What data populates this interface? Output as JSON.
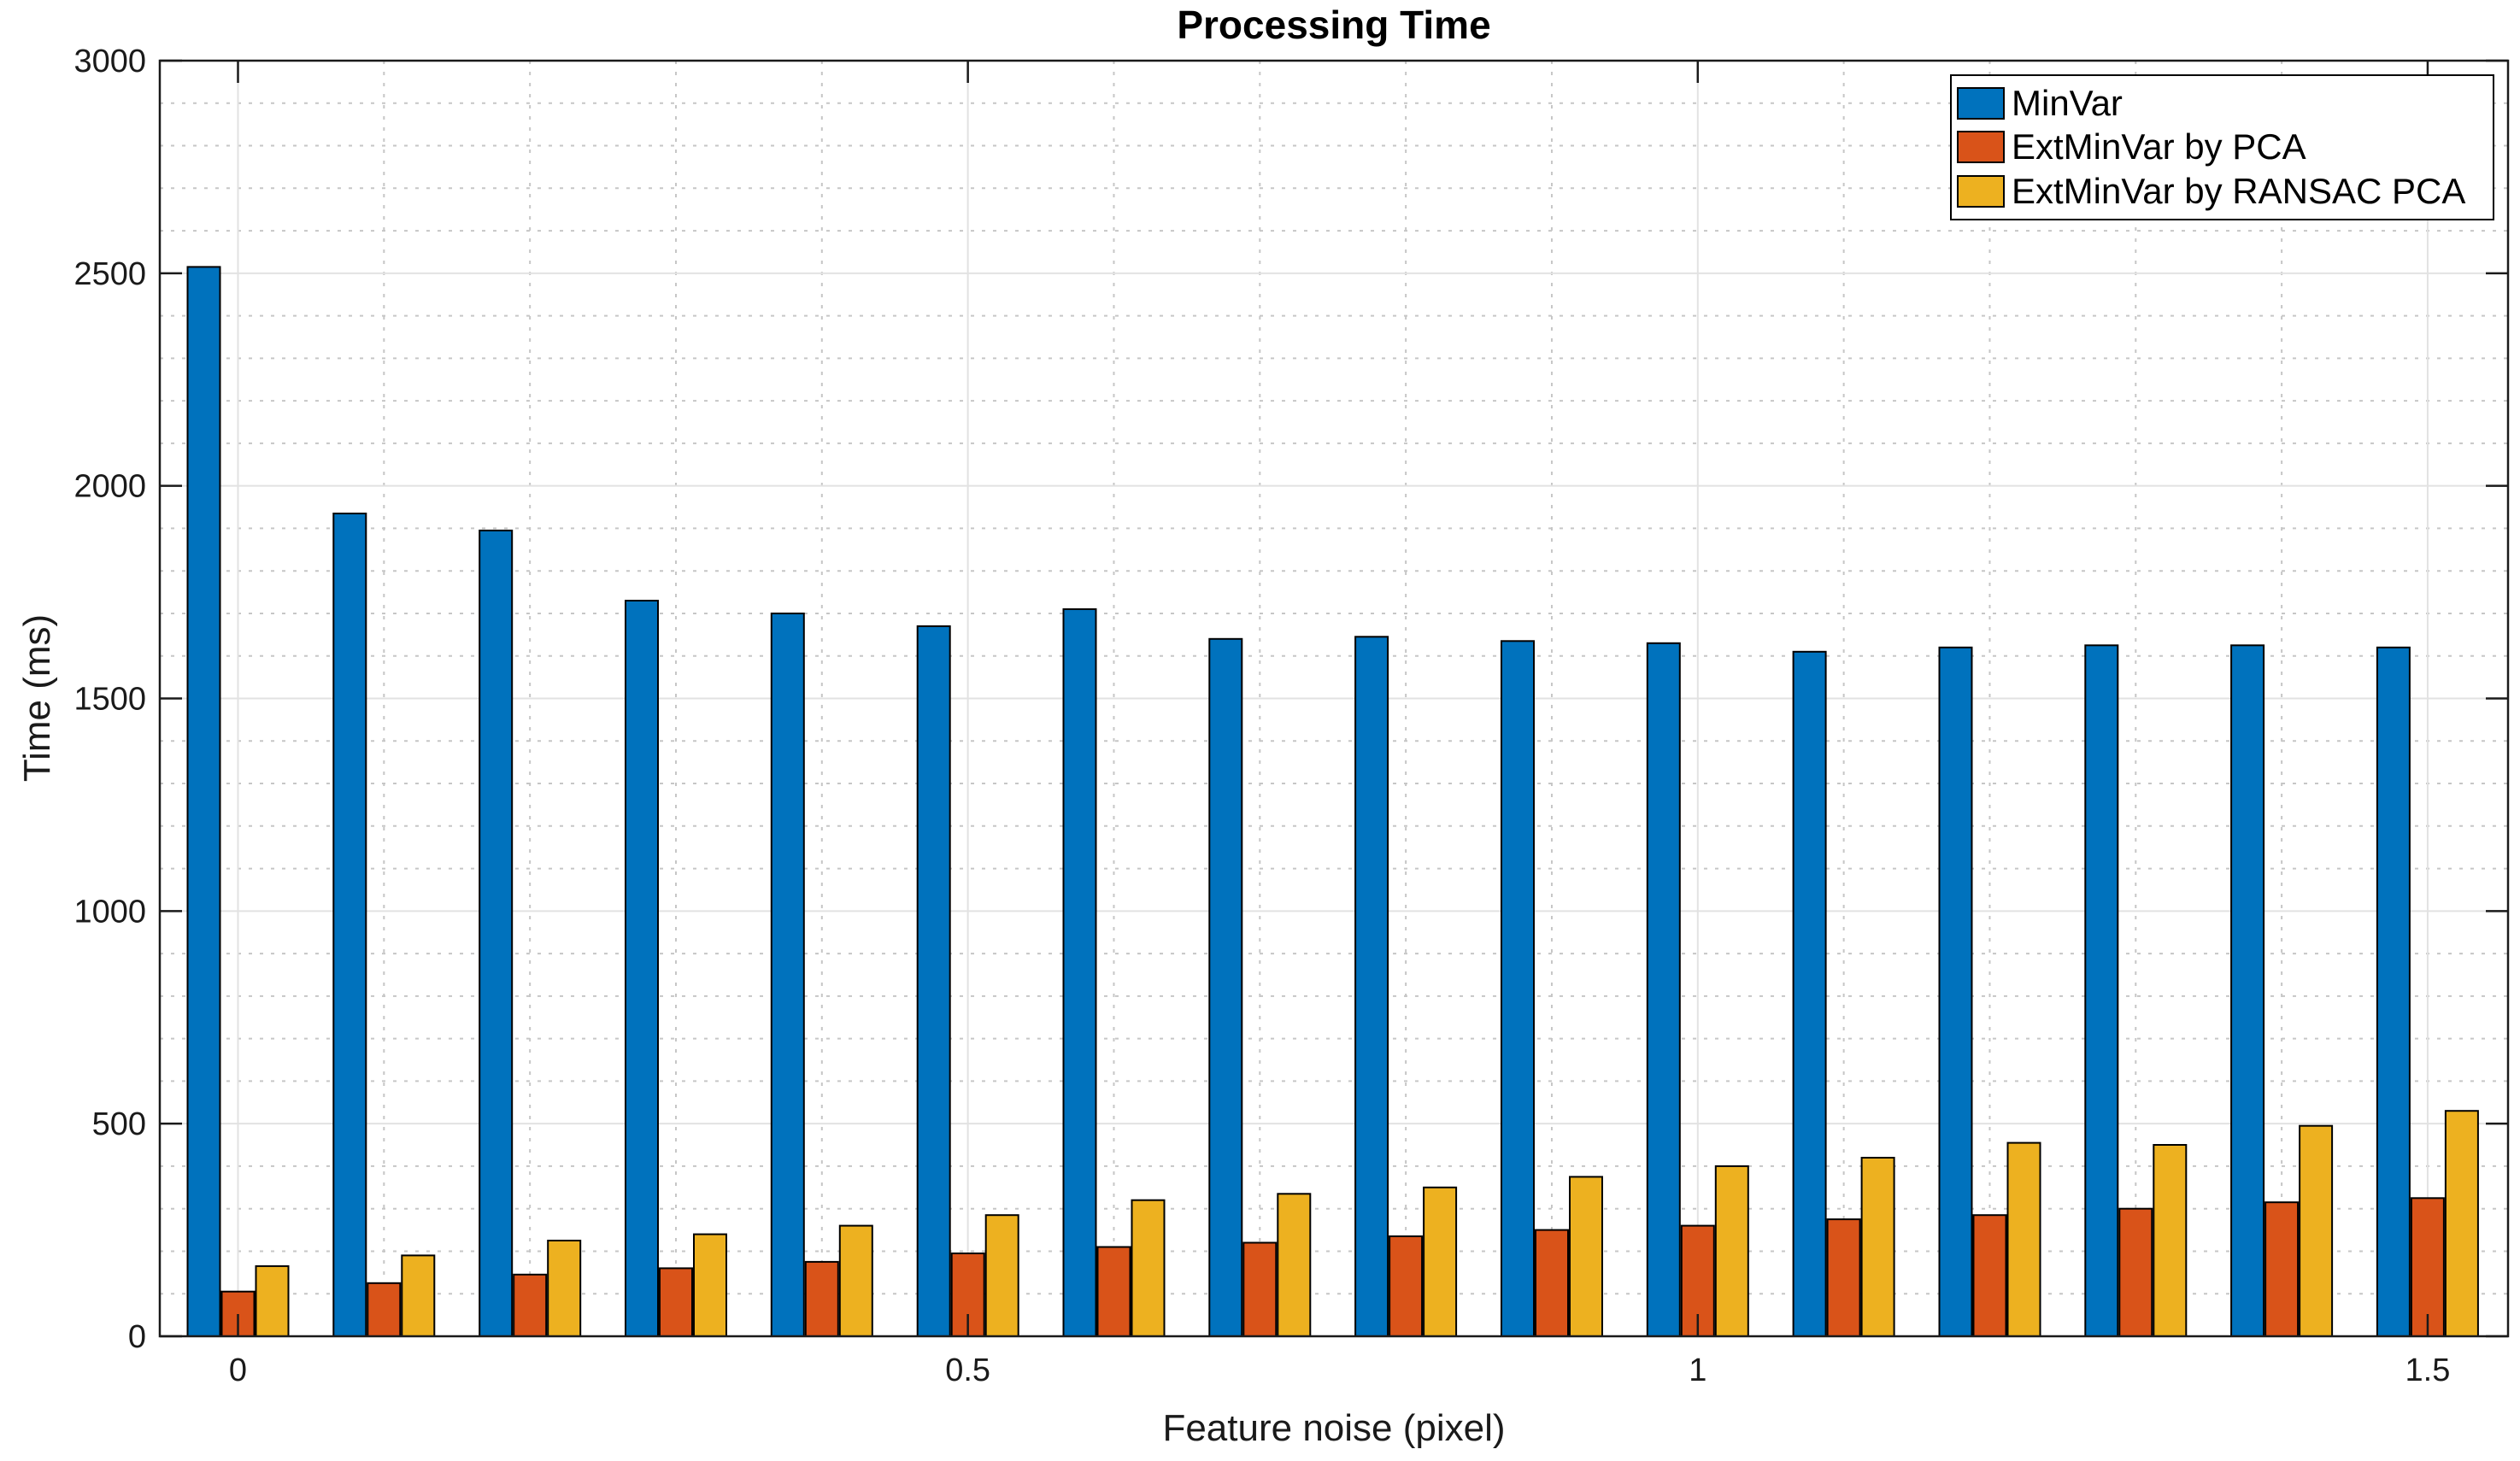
{
  "figure": {
    "background": "#ffffff"
  },
  "chart_data": {
    "type": "bar",
    "title": "Processing Time",
    "xlabel": "Feature noise (pixel)",
    "ylabel": "Time (ms)",
    "ylim": [
      0,
      3000
    ],
    "xlim": [
      -0.051,
      1.555
    ],
    "x": [
      0,
      0.1,
      0.2,
      0.3,
      0.4,
      0.5,
      0.6,
      0.7,
      0.8,
      0.9,
      1.0,
      1.1,
      1.2,
      1.3,
      1.4,
      1.5
    ],
    "series": [
      {
        "name": "MinVar",
        "color": "#0072BD",
        "values": [
          2515,
          1935,
          1895,
          1730,
          1700,
          1670,
          1710,
          1640,
          1645,
          1635,
          1630,
          1610,
          1620,
          1625,
          1625,
          1620
        ]
      },
      {
        "name": "ExtMinVar by PCA",
        "color": "#D95319",
        "values": [
          105,
          125,
          145,
          160,
          175,
          195,
          210,
          220,
          235,
          250,
          260,
          275,
          285,
          300,
          315,
          325
        ]
      },
      {
        "name": "ExtMinVar by RANSAC PCA",
        "color": "#EDB120",
        "values": [
          165,
          190,
          225,
          240,
          260,
          285,
          320,
          335,
          350,
          375,
          400,
          420,
          455,
          450,
          495,
          530
        ]
      }
    ],
    "xticks": [
      0,
      0.5,
      1,
      1.5
    ],
    "xtick_labels": [
      "0",
      "0.5",
      "1",
      "1.5"
    ],
    "yticks": [
      0,
      500,
      1000,
      1500,
      2000,
      2500,
      3000
    ],
    "ytick_labels": [
      "0",
      "500",
      "1000",
      "1500",
      "2000",
      "2500",
      "3000"
    ],
    "y_minor_step": 100,
    "x_minor_step": 0.1,
    "grid": {
      "major": "solid",
      "minor": "dashed"
    },
    "legend_position": "top-right",
    "bar_edge_color": "#000000",
    "axis_color": "#1a1a1a",
    "tick_label_color": "#1a1a1a",
    "major_grid_color": "#e2e2e2",
    "minor_grid_color": "#c6c6c6",
    "legend_border_color": "#000000",
    "legend_background": "#ffffff"
  }
}
